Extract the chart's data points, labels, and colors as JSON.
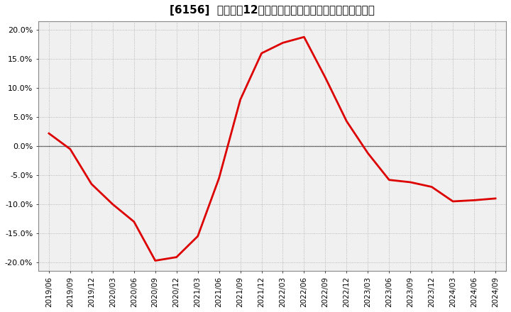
{
  "title": "[6156]  売上高だ12か月移動合計の対前年同期増減率の推移",
  "line_color": "#dd0000",
  "background_color": "#ffffff",
  "plot_bg_color": "#f0f0f0",
  "grid_color": "#aaaaaa",
  "zero_line_color": "#555555",
  "ylim": [
    -0.215,
    0.215
  ],
  "yticks": [
    -0.2,
    -0.15,
    -0.1,
    -0.05,
    0.0,
    0.05,
    0.1,
    0.15,
    0.2
  ],
  "dates": [
    "2019/06",
    "2019/09",
    "2019/12",
    "2020/03",
    "2020/06",
    "2020/09",
    "2020/12",
    "2021/03",
    "2021/06",
    "2021/09",
    "2021/12",
    "2022/03",
    "2022/06",
    "2022/09",
    "2022/12",
    "2023/03",
    "2023/06",
    "2023/09",
    "2023/12",
    "2024/03",
    "2024/06",
    "2024/09"
  ],
  "values": [
    0.022,
    -0.005,
    -0.065,
    -0.1,
    -0.13,
    -0.197,
    -0.191,
    -0.155,
    -0.055,
    0.08,
    0.16,
    0.178,
    0.188,
    0.118,
    0.043,
    -0.012,
    -0.058,
    -0.062,
    -0.07,
    -0.095,
    -0.093,
    -0.09
  ],
  "title_fontsize": 11,
  "tick_fontsize": 8,
  "xtick_fontsize": 7.5,
  "linewidth": 2.0
}
